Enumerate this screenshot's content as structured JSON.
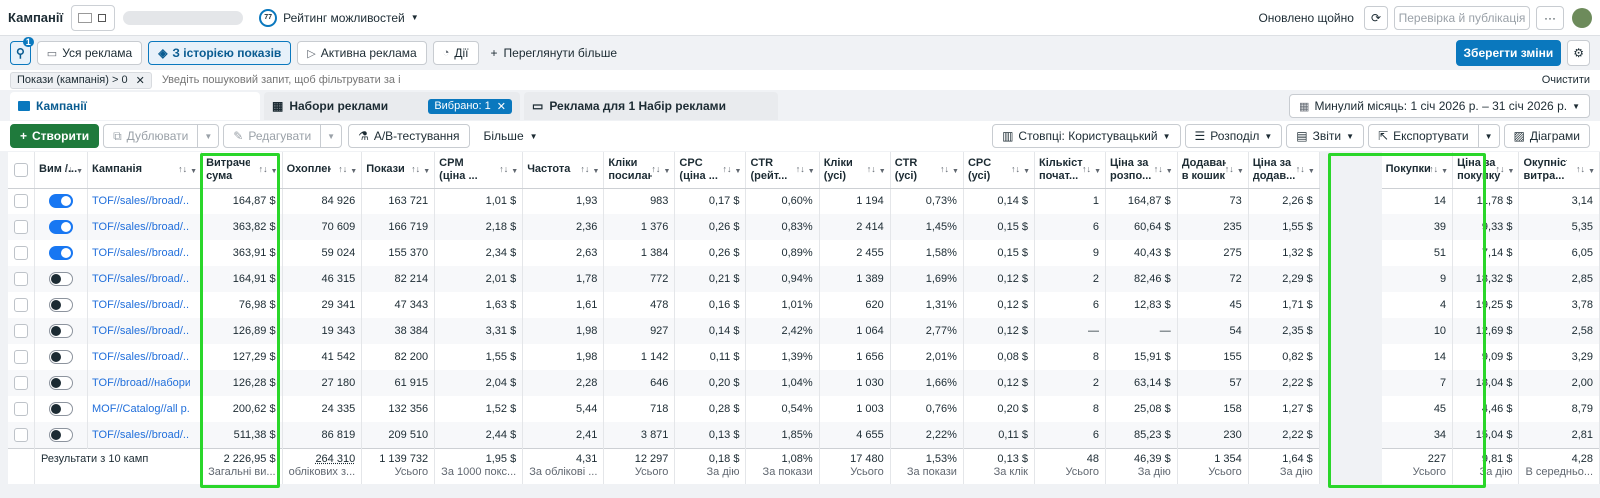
{
  "header": {
    "title": "Кампанії",
    "rating": "Рейтинг можливостей",
    "rating_badge": "77",
    "status": "Оновлено щойно",
    "publish": "Перевірка й публікація",
    "more": "···"
  },
  "nav": {
    "search_badge": "1",
    "items": [
      "Уся реклама",
      "З історією показів",
      "Активна реклама",
      "Дії"
    ],
    "see_more": "Переглянути більше",
    "save": "Зберегти зміни"
  },
  "filter": {
    "chip": "Покази (кампанія) > 0",
    "placeholder": "Уведіть пошуковий запит, щоб фільтрувати за і",
    "clear": "Очистити"
  },
  "tabs": {
    "campaigns": "Кампанії",
    "adsets": "Набори реклами",
    "selected": "Вибрано: 1",
    "ads": "Реклама для 1 Набір реклами",
    "date": "Минулий місяць: 1 січ 2026 р. – 31 січ 2026 р."
  },
  "actions": {
    "create": "Створити",
    "duplicate": "Дублювати",
    "edit": "Редагувати",
    "ab": "A/B-тестування",
    "more": "Більше",
    "columns": "Стовпці: Користувацький",
    "breakdown": "Розподіл",
    "reports": "Звіти",
    "export": "Експортувати",
    "charts": "Діаграми"
  },
  "columns": [
    "Вим /...",
    "Кампанія",
    "Витрачена сума",
    "Охоплення",
    "Покази",
    "CPM (ціна ...",
    "Частота",
    "Кліки посилан...",
    "CPC (ціна ...",
    "CTR (рейт...",
    "Кліки (усі)",
    "CTR (усі)",
    "CPC (усі)",
    "Кількість почат...",
    "Ціна за розпо...",
    "Додавання в кошик",
    "Ціна за додав...",
    "Покупки",
    "Ціна за покупку",
    "Окупність витра..."
  ],
  "rows": [
    {
      "on": true,
      "name": "TOF//sales//broad/...",
      "c": [
        "164,87 $",
        "84 926",
        "163 721",
        "1,01 $",
        "1,93",
        "983",
        "0,17 $",
        "0,60%",
        "1 194",
        "0,73%",
        "0,14 $",
        "1",
        "164,87 $",
        "73",
        "2,26 $",
        "14",
        "11,78 $",
        "3,14"
      ]
    },
    {
      "on": true,
      "name": "TOF//sales//broad/...",
      "c": [
        "363,82 $",
        "70 609",
        "166 719",
        "2,18 $",
        "2,36",
        "1 376",
        "0,26 $",
        "0,83%",
        "2 414",
        "1,45%",
        "0,15 $",
        "6",
        "60,64 $",
        "235",
        "1,55 $",
        "39",
        "9,33 $",
        "5,35"
      ]
    },
    {
      "on": true,
      "name": "TOF//sales//broad/...",
      "c": [
        "363,91 $",
        "59 024",
        "155 370",
        "2,34 $",
        "2,63",
        "1 384",
        "0,26 $",
        "0,89%",
        "2 455",
        "1,58%",
        "0,15 $",
        "9",
        "40,43 $",
        "275",
        "1,32 $",
        "51",
        "7,14 $",
        "6,05"
      ]
    },
    {
      "on": false,
      "name": "TOF//sales//broad/...",
      "c": [
        "164,91 $",
        "46 315",
        "82 214",
        "2,01 $",
        "1,78",
        "772",
        "0,21 $",
        "0,94%",
        "1 389",
        "1,69%",
        "0,12 $",
        "2",
        "82,46 $",
        "72",
        "2,29 $",
        "9",
        "18,32 $",
        "2,85"
      ]
    },
    {
      "on": false,
      "name": "TOF//sales//broad/...",
      "c": [
        "76,98 $",
        "29 341",
        "47 343",
        "1,63 $",
        "1,61",
        "478",
        "0,16 $",
        "1,01%",
        "620",
        "1,31%",
        "0,12 $",
        "6",
        "12,83 $",
        "45",
        "1,71 $",
        "4",
        "19,25 $",
        "3,78"
      ]
    },
    {
      "on": false,
      "name": "TOF//sales//broad/...",
      "c": [
        "126,89 $",
        "19 343",
        "38 384",
        "3,31 $",
        "1,98",
        "927",
        "0,14 $",
        "2,42%",
        "1 064",
        "2,77%",
        "0,12 $",
        "—",
        "—",
        "54",
        "2,35 $",
        "10",
        "12,69 $",
        "2,58"
      ]
    },
    {
      "on": false,
      "name": "TOF//sales//broad/...",
      "c": [
        "127,29 $",
        "41 542",
        "82 200",
        "1,55 $",
        "1,98",
        "1 142",
        "0,11 $",
        "1,39%",
        "1 656",
        "2,01%",
        "0,08 $",
        "8",
        "15,91 $",
        "155",
        "0,82 $",
        "14",
        "9,09 $",
        "3,29"
      ]
    },
    {
      "on": false,
      "name": "TOF//broad//набори",
      "c": [
        "126,28 $",
        "27 180",
        "61 915",
        "2,04 $",
        "2,28",
        "646",
        "0,20 $",
        "1,04%",
        "1 030",
        "1,66%",
        "0,12 $",
        "2",
        "63,14 $",
        "57",
        "2,22 $",
        "7",
        "18,04 $",
        "2,00"
      ]
    },
    {
      "on": false,
      "name": "MOF//Catalog//all p...",
      "c": [
        "200,62 $",
        "24 335",
        "132 356",
        "1,52 $",
        "5,44",
        "718",
        "0,28 $",
        "0,54%",
        "1 003",
        "0,76%",
        "0,20 $",
        "8",
        "25,08 $",
        "158",
        "1,27 $",
        "45",
        "4,46 $",
        "8,79"
      ]
    },
    {
      "on": false,
      "name": "TOF//sales//broad/...",
      "c": [
        "511,38 $",
        "86 819",
        "209 510",
        "2,44 $",
        "2,41",
        "3 871",
        "0,13 $",
        "1,85%",
        "4 655",
        "2,22%",
        "0,11 $",
        "6",
        "85,23 $",
        "230",
        "2,22 $",
        "34",
        "15,04 $",
        "2,81"
      ]
    }
  ],
  "totals": {
    "label": "Результати з 10 камп",
    "c": [
      "2 226,95 $",
      "264 310",
      "1 139 732",
      "1,95 $",
      "4,31",
      "12 297",
      "0,18 $",
      "1,08%",
      "17 480",
      "1,53%",
      "0,13 $",
      "48",
      "46,39 $",
      "1 354",
      "1,64 $",
      "227",
      "9,81 $",
      "4,28"
    ],
    "sub": [
      "Загальні ви...",
      "облікових з...",
      "Усього",
      "За 1000 покс...",
      "За облікові ...",
      "Усього",
      "За дію",
      "За покази",
      "Усього",
      "За покази",
      "За клік",
      "Усього",
      "За дію",
      "Усього",
      "За дію",
      "Усього",
      "За дію",
      "В середньо..."
    ]
  },
  "colors": {
    "accent": "#0a78be",
    "highlight": "#2ad62a",
    "create": "#1f7a3c"
  }
}
